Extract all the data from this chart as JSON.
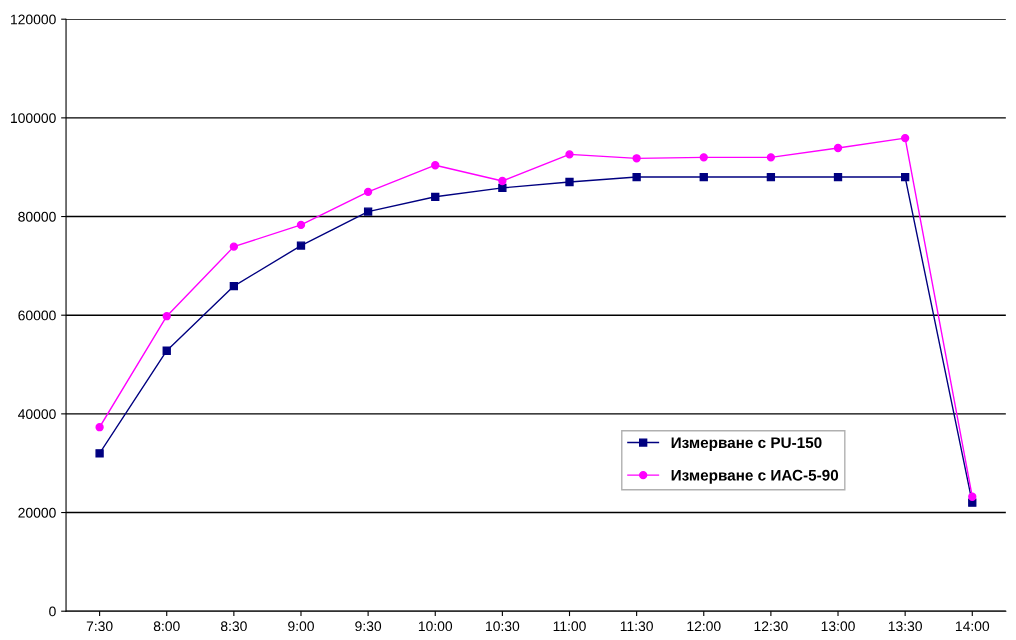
{
  "chart_data": {
    "type": "line",
    "categories": [
      "7:30",
      "8:00",
      "8:30",
      "9:00",
      "9:30",
      "10:00",
      "10:30",
      "11:00",
      "11:30",
      "12:00",
      "12:30",
      "13:00",
      "13:30",
      "14:00"
    ],
    "series": [
      {
        "name": "Измерване с PU-150",
        "color": "#000080",
        "marker": "square",
        "values": [
          32000,
          52800,
          65900,
          74100,
          81000,
          84000,
          85800,
          87000,
          88000,
          88000,
          88000,
          88000,
          88000,
          22000
        ]
      },
      {
        "name": "Измерване с ИАС-5-90",
        "color": "#ff00ff",
        "marker": "circle",
        "values": [
          37300,
          59800,
          73900,
          78300,
          85000,
          90400,
          87200,
          92600,
          91800,
          92000,
          92000,
          93900,
          95900,
          23200
        ]
      }
    ],
    "ylim": [
      0,
      120000
    ],
    "yticks": [
      0,
      20000,
      40000,
      60000,
      80000,
      100000,
      120000
    ],
    "grid": "y",
    "legend": "bottom right",
    "line_style": "solid"
  }
}
